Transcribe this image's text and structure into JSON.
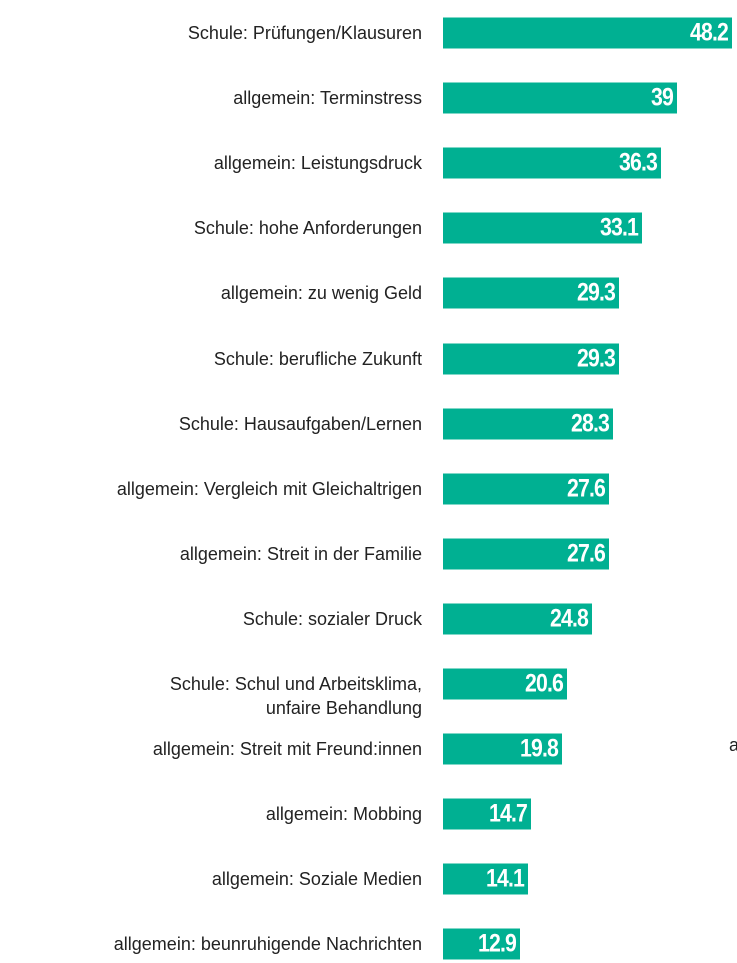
{
  "chart_data": {
    "type": "bar",
    "orientation": "horizontal",
    "categories": [
      "Schule: Prüfungen/Klausuren",
      "allgemein: Terminstress",
      "allgemein: Leistungsdruck",
      "Schule: hohe Anforderungen",
      "allgemein: zu wenig Geld",
      "Schule: berufliche Zukunft",
      "Schule: Hausaufgaben/Lernen",
      "allgemein: Vergleich mit Gleichaltrigen",
      "allgemein: Streit in der Familie",
      "Schule: sozialer Druck",
      "Schule: Schul und Arbeitsklima,\nunfaire Behandlung",
      "allgemein: Streit mit Freund:innen",
      "allgemein: Mobbing",
      "allgemein: Soziale Medien",
      "allgemein: beunruhigende Nachrichten"
    ],
    "values": [
      48.2,
      39,
      36.3,
      33.1,
      29.3,
      29.3,
      28.3,
      27.6,
      27.6,
      24.8,
      20.6,
      19.8,
      14.7,
      14.1,
      12.9
    ],
    "color": "#00b092",
    "annotation": "a"
  }
}
